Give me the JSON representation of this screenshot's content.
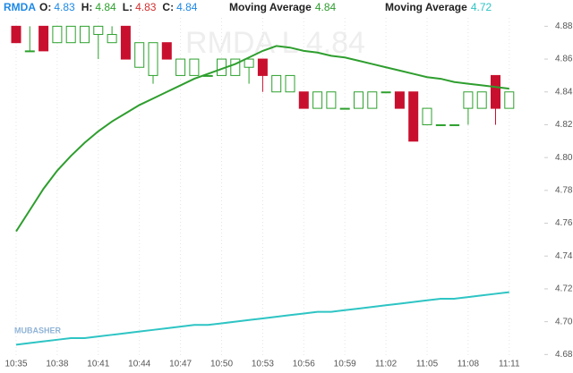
{
  "chart_data": {
    "type": "candlestick",
    "symbol": "RMDA",
    "ohlc_legend": [
      {
        "label": "O:",
        "value": 4.83,
        "color": "#1e88e5"
      },
      {
        "label": "H:",
        "value": 4.84,
        "color": "#2ca02c"
      },
      {
        "label": "L:",
        "value": 4.83,
        "color": "#d32f2f"
      },
      {
        "label": "C:",
        "value": 4.84,
        "color": "#1e88e5"
      }
    ],
    "watermark": "RMDA L 4.84",
    "logo": "MUBASHER",
    "up_color": "#2ca02c",
    "down_color": "#c8102e",
    "categories": [
      "10:35",
      null,
      null,
      "10:38",
      null,
      null,
      "10:41",
      null,
      null,
      "10:44",
      null,
      null,
      "10:47",
      null,
      null,
      "10:50",
      null,
      null,
      "10:53",
      null,
      null,
      "10:56",
      null,
      null,
      "10:59",
      null,
      null,
      "11:02",
      null,
      null,
      "11:05",
      null,
      null,
      "11:08",
      null,
      null,
      "11:11"
    ],
    "open": [
      4.88,
      4.865,
      4.88,
      4.87,
      4.87,
      4.87,
      4.875,
      4.87,
      4.88,
      4.855,
      4.85,
      4.87,
      4.85,
      4.85,
      4.85,
      4.85,
      4.85,
      4.855,
      4.86,
      4.84,
      4.84,
      4.84,
      4.83,
      4.83,
      4.83,
      4.83,
      4.83,
      4.84,
      4.84,
      4.84,
      4.82,
      4.82,
      4.82,
      4.83,
      4.83,
      4.85,
      4.83
    ],
    "high": [
      4.88,
      4.88,
      4.88,
      4.88,
      4.88,
      4.88,
      4.88,
      4.88,
      4.88,
      4.87,
      4.87,
      4.87,
      4.86,
      4.86,
      4.85,
      4.86,
      4.86,
      4.86,
      4.86,
      4.85,
      4.85,
      4.84,
      4.84,
      4.84,
      4.83,
      4.84,
      4.84,
      4.84,
      4.84,
      4.84,
      4.83,
      4.82,
      4.82,
      4.84,
      4.84,
      4.85,
      4.84
    ],
    "low": [
      4.87,
      4.865,
      4.865,
      4.87,
      4.87,
      4.87,
      4.86,
      4.87,
      4.86,
      4.855,
      4.845,
      4.86,
      4.85,
      4.85,
      4.85,
      4.85,
      4.85,
      4.845,
      4.84,
      4.84,
      4.84,
      4.83,
      4.83,
      4.83,
      4.83,
      4.83,
      4.83,
      4.84,
      4.83,
      4.81,
      4.82,
      4.82,
      4.82,
      4.82,
      4.83,
      4.82,
      4.83
    ],
    "close": [
      4.87,
      4.865,
      4.865,
      4.88,
      4.88,
      4.88,
      4.88,
      4.875,
      4.86,
      4.87,
      4.87,
      4.86,
      4.86,
      4.86,
      4.85,
      4.86,
      4.86,
      4.86,
      4.85,
      4.85,
      4.85,
      4.83,
      4.84,
      4.84,
      4.83,
      4.84,
      4.84,
      4.84,
      4.83,
      4.81,
      4.83,
      4.82,
      4.82,
      4.84,
      4.84,
      4.83,
      4.84
    ],
    "moving_averages": [
      {
        "name": "Moving Average",
        "value": 4.84,
        "color": "#2e9e2e",
        "values": [
          4.755,
          4.768,
          4.781,
          4.792,
          4.801,
          4.809,
          4.816,
          4.822,
          4.827,
          4.832,
          4.836,
          4.84,
          4.844,
          4.848,
          4.851,
          4.854,
          4.857,
          4.861,
          4.865,
          4.868,
          4.867,
          4.865,
          4.864,
          4.862,
          4.861,
          4.859,
          4.857,
          4.855,
          4.853,
          4.851,
          4.849,
          4.848,
          4.846,
          4.845,
          4.844,
          4.843,
          4.842
        ]
      },
      {
        "name": "Moving Average",
        "value": 4.72,
        "color": "#2ec4c4",
        "values": [
          4.686,
          4.687,
          4.688,
          4.689,
          4.69,
          4.69,
          4.691,
          4.692,
          4.693,
          4.694,
          4.695,
          4.696,
          4.697,
          4.698,
          4.698,
          4.699,
          4.7,
          4.701,
          4.702,
          4.703,
          4.704,
          4.705,
          4.706,
          4.706,
          4.707,
          4.708,
          4.709,
          4.71,
          4.711,
          4.712,
          4.713,
          4.714,
          4.714,
          4.715,
          4.716,
          4.717,
          4.718
        ]
      }
    ],
    "ylim": [
      4.678,
      4.896
    ],
    "yticks": [
      {
        "value": 4.68,
        "label": "4.68"
      },
      {
        "value": 4.7,
        "label": "4.70"
      },
      {
        "value": 4.72,
        "label": "4.72"
      },
      {
        "value": 4.74,
        "label": "4.74"
      },
      {
        "value": 4.76,
        "label": "4.76"
      },
      {
        "value": 4.78,
        "label": "4.78"
      },
      {
        "value": 4.8,
        "label": "4.80"
      },
      {
        "value": 4.82,
        "label": "4.82"
      },
      {
        "value": 4.84,
        "label": "4.84"
      },
      {
        "value": 4.86,
        "label": "4.86"
      },
      {
        "value": 4.88,
        "label": "4.88"
      }
    ],
    "grid": true
  }
}
